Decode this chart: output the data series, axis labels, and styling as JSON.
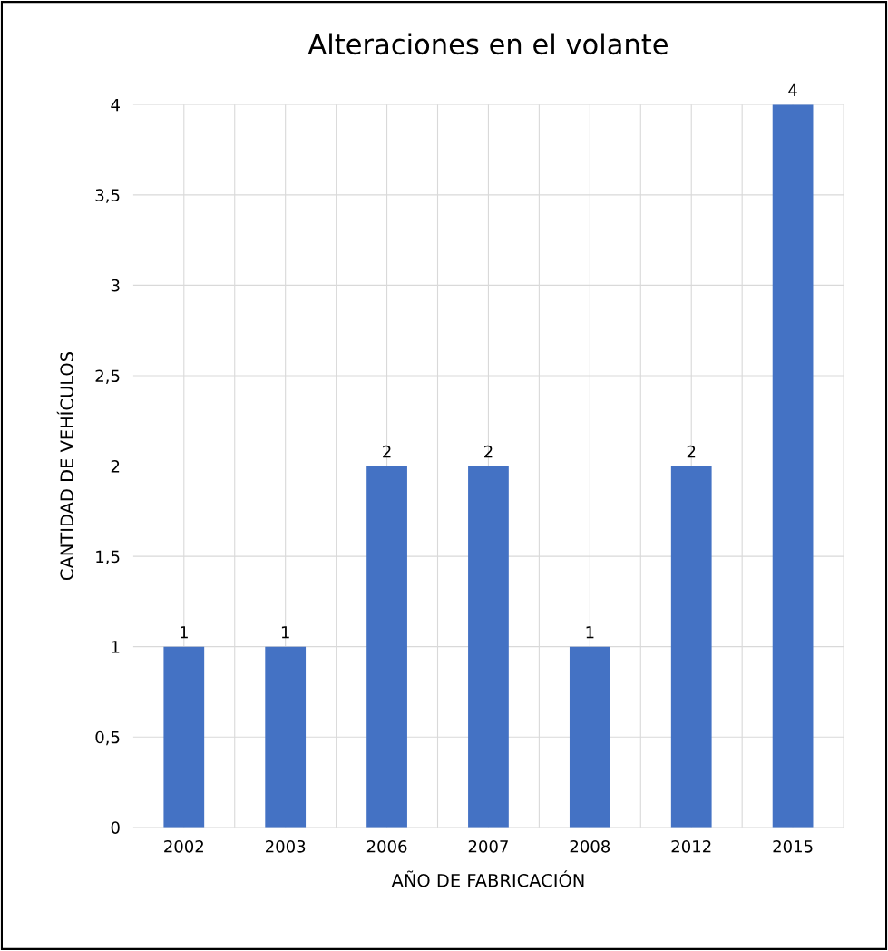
{
  "chart_data": {
    "type": "bar",
    "title": "Alteraciones en el volante",
    "xlabel": "AÑO DE FABRICACIÓN",
    "ylabel": "CANTIDAD DE VEHÍCULOS",
    "categories": [
      "2002",
      "2003",
      "2006",
      "2007",
      "2008",
      "2012",
      "2015"
    ],
    "values": [
      1,
      1,
      2,
      2,
      1,
      2,
      4
    ],
    "color": "#4472c4",
    "data_labels": true,
    "ylim": [
      0,
      4
    ],
    "yticks": [
      0,
      {
        "value": 0.5,
        "label": "0,5"
      },
      1,
      {
        "value": 1.5,
        "label": "1,5"
      },
      2,
      {
        "value": 2.5,
        "label": "2,5"
      },
      3,
      {
        "value": 3.5,
        "label": "3,5"
      },
      4
    ],
    "grid": true
  }
}
